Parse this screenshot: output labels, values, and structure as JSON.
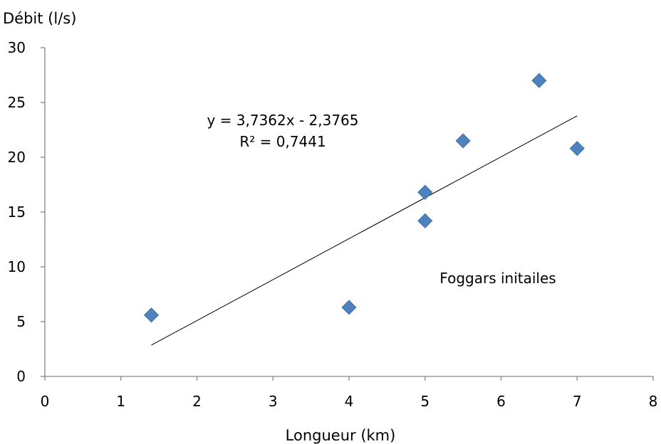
{
  "chart_data": {
    "type": "scatter",
    "title": "",
    "xlabel": "Longueur (km)",
    "ylabel": "Débit (l/s)",
    "xlim": [
      0,
      8
    ],
    "ylim": [
      0,
      30
    ],
    "x_ticks": [
      0,
      1,
      2,
      3,
      4,
      5,
      6,
      7,
      8
    ],
    "y_ticks": [
      0,
      5,
      10,
      15,
      20,
      25,
      30
    ],
    "grid": false,
    "marker": "diamond",
    "series": [
      {
        "color": "#4F81BD",
        "points": [
          {
            "x": 1.4,
            "y": 5.6
          },
          {
            "x": 4.0,
            "y": 6.3
          },
          {
            "x": 5.0,
            "y": 16.8
          },
          {
            "x": 5.0,
            "y": 14.2
          },
          {
            "x": 5.5,
            "y": 21.5
          },
          {
            "x": 6.5,
            "y": 27.0
          },
          {
            "x": 7.0,
            "y": 20.8
          }
        ]
      }
    ],
    "trendline": {
      "type": "linear",
      "slope": 3.7362,
      "intercept": -2.3765,
      "x_range": [
        1.4,
        7.0
      ],
      "color": "#000000"
    },
    "annotations": {
      "equation": "y = 3,7362x - 2,3765",
      "r_squared": "R² = 0,7441",
      "series_label": "Foggars initailes"
    }
  }
}
